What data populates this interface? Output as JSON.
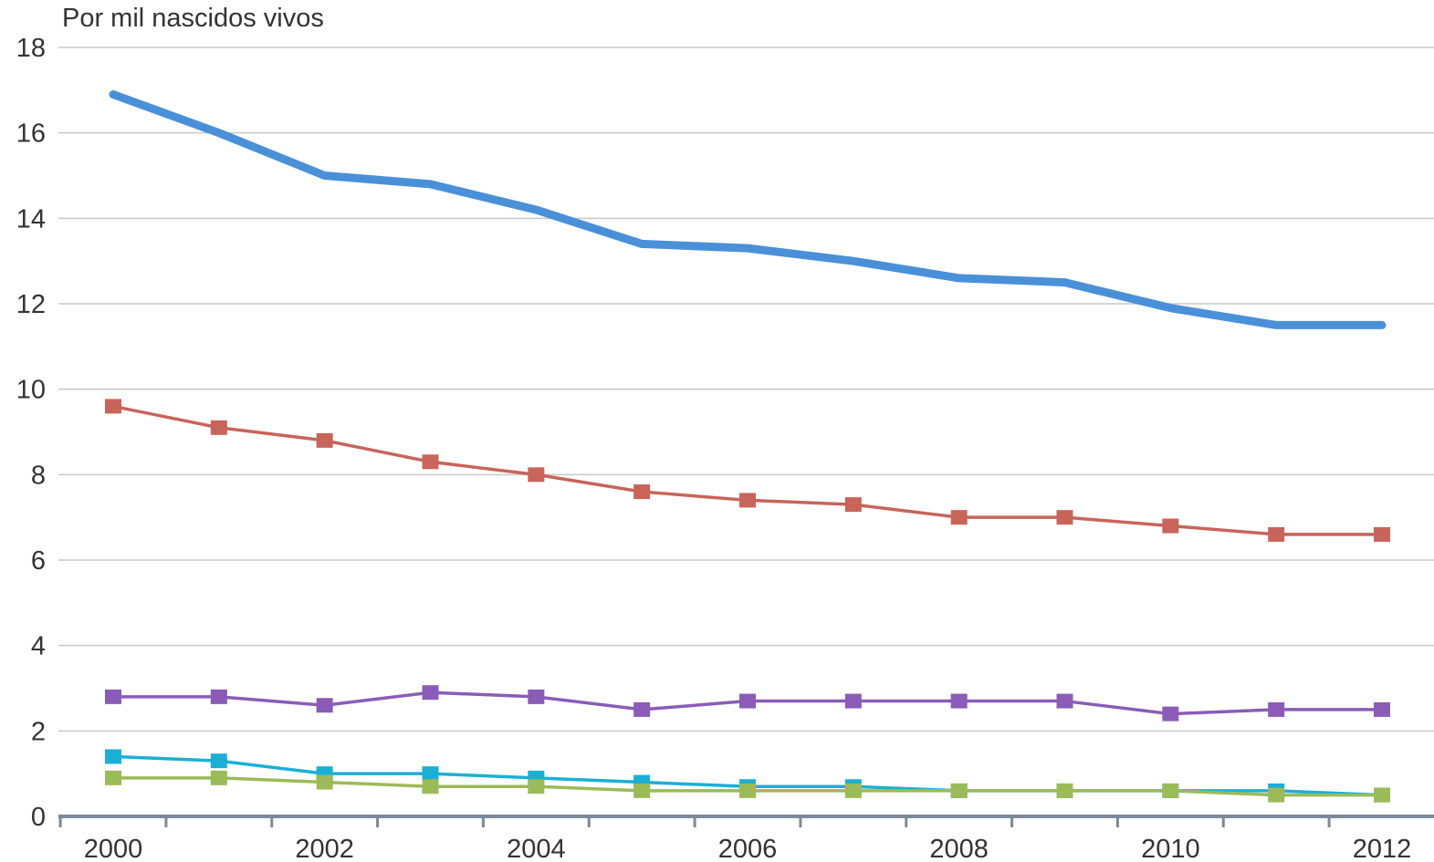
{
  "chart_data": {
    "type": "line",
    "ylabel": "Por mil nascidos vivos",
    "xlabel": "",
    "title": "",
    "x": [
      2000,
      2001,
      2002,
      2003,
      2004,
      2005,
      2006,
      2007,
      2008,
      2009,
      2010,
      2011,
      2012
    ],
    "x_tick_labels": [
      "2000",
      "2002",
      "2004",
      "2006",
      "2008",
      "2010",
      "2012"
    ],
    "y_tick_labels": [
      "0",
      "2",
      "4",
      "6",
      "8",
      "10",
      "12",
      "14",
      "16",
      "18"
    ],
    "ylim": [
      0,
      18
    ],
    "xlim": [
      1999.5,
      2012.5
    ],
    "grid": "horizontal",
    "series": [
      {
        "color": "#4a90d9",
        "marker": "none",
        "values": [
          16.9,
          16.0,
          15.0,
          14.8,
          14.2,
          13.4,
          13.3,
          13.0,
          12.6,
          12.5,
          11.9,
          11.5,
          11.5
        ]
      },
      {
        "color": "#c8645a",
        "marker": "square",
        "values": [
          9.6,
          9.1,
          8.8,
          8.3,
          8.0,
          7.6,
          7.4,
          7.3,
          7.0,
          7.0,
          6.8,
          6.6,
          6.6
        ]
      },
      {
        "color": "#8a5cb8",
        "marker": "square",
        "values": [
          2.8,
          2.8,
          2.6,
          2.9,
          2.8,
          2.5,
          2.7,
          2.7,
          2.7,
          2.7,
          2.4,
          2.5,
          2.5
        ]
      },
      {
        "color": "#1ab0d6",
        "marker": "square",
        "values": [
          1.4,
          1.3,
          1.0,
          1.0,
          0.9,
          0.8,
          0.7,
          0.7,
          0.6,
          0.6,
          0.6,
          0.6,
          0.5
        ]
      },
      {
        "color": "#9bbb59",
        "marker": "square",
        "values": [
          0.9,
          0.9,
          0.8,
          0.7,
          0.7,
          0.6,
          0.6,
          0.6,
          0.6,
          0.6,
          0.6,
          0.5,
          0.5
        ]
      }
    ]
  }
}
